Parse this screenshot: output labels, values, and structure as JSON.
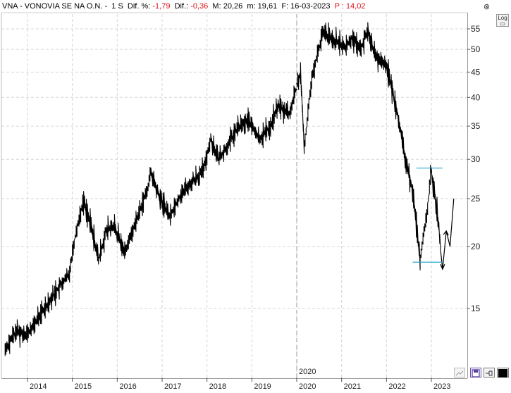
{
  "header": {
    "symbol": "VNA - VONOVIA SE NA O.N. -",
    "timeframe": "1 S",
    "dif_pct_label": "Dif. %:",
    "dif_pct_value": "-1,79",
    "dif_label": "Dif.:",
    "dif_value": "-0,36",
    "max_label": "M:",
    "max_value": "20,26",
    "min_label": "m:",
    "min_value": "19,61",
    "date_label": "F:",
    "date_value": "16-03-2023",
    "price_label": "P :",
    "price_value": "14,02"
  },
  "controls": {
    "log_label": "Log",
    "close_glyph": "⊗"
  },
  "colors": {
    "price_line": "#000000",
    "level_lines": "#2aa8c8",
    "grid": "#d6d6d6",
    "red_text": "#e0141e"
  },
  "chart_data": {
    "type": "line",
    "scale": "log",
    "ylim": [
      11.5,
      58
    ],
    "yticks": [
      15,
      20,
      25,
      30,
      35,
      40,
      45,
      50,
      55
    ],
    "x_range": [
      "2013-06",
      "2023-08"
    ],
    "xticks": [
      "2014",
      "2015",
      "2016",
      "2017",
      "2018",
      "2019",
      "2020",
      "2021",
      "2022",
      "2023"
    ],
    "cursor_label": "2020",
    "grid": true,
    "series": [
      {
        "values": [
          [
            "2013-07",
            12.4
          ],
          [
            "2013-10",
            13.5
          ],
          [
            "2014-01",
            13.3
          ],
          [
            "2014-04",
            14.4
          ],
          [
            "2014-07",
            15.6
          ],
          [
            "2014-10",
            16.8
          ],
          [
            "2014-12",
            17.5
          ],
          [
            "2015-02",
            21.5
          ],
          [
            "2015-04",
            24.8
          ],
          [
            "2015-06",
            22.0
          ],
          [
            "2015-08",
            18.8
          ],
          [
            "2015-10",
            21.5
          ],
          [
            "2015-12",
            22.0
          ],
          [
            "2016-03",
            19.5
          ],
          [
            "2016-06",
            22.5
          ],
          [
            "2016-09",
            26.0
          ],
          [
            "2016-10",
            28.2
          ],
          [
            "2016-12",
            25.5
          ],
          [
            "2017-03",
            23.0
          ],
          [
            "2017-06",
            25.5
          ],
          [
            "2017-09",
            27.0
          ],
          [
            "2017-12",
            28.5
          ],
          [
            "2018-02",
            33.0
          ],
          [
            "2018-04",
            30.0
          ],
          [
            "2018-06",
            31.5
          ],
          [
            "2018-09",
            34.5
          ],
          [
            "2018-12",
            36.0
          ],
          [
            "2019-03",
            33.0
          ],
          [
            "2019-06",
            35.0
          ],
          [
            "2019-08",
            38.5
          ],
          [
            "2019-11",
            37.0
          ],
          [
            "2020-01",
            42.0
          ],
          [
            "2020-02",
            45.0
          ],
          [
            "2020-03",
            31.5
          ],
          [
            "2020-05",
            44.0
          ],
          [
            "2020-08",
            54.0
          ],
          [
            "2020-11",
            52.0
          ],
          [
            "2021-02",
            50.5
          ],
          [
            "2021-04",
            53.0
          ],
          [
            "2021-06",
            50.0
          ],
          [
            "2021-08",
            54.5
          ],
          [
            "2021-10",
            48.5
          ],
          [
            "2022-01",
            46.5
          ],
          [
            "2022-04",
            37.0
          ],
          [
            "2022-06",
            30.0
          ],
          [
            "2022-08",
            26.0
          ],
          [
            "2022-10",
            18.8
          ],
          [
            "2022-12",
            24.0
          ],
          [
            "2023-01",
            28.5
          ],
          [
            "2023-03",
            22.0
          ],
          [
            "2023-03-16",
            19.6
          ]
        ]
      },
      {
        "name": "projection",
        "values": [
          [
            "2023-03-16",
            19.6
          ],
          [
            "2023-04",
            18.0
          ],
          [
            "2023-05",
            21.5
          ],
          [
            "2023-06",
            20.0
          ],
          [
            "2023-07",
            25.0
          ]
        ]
      }
    ],
    "levels": [
      {
        "value": 28.8,
        "x_start": "2022-09",
        "x_end": "2023-04"
      },
      {
        "value": 18.6,
        "x_start": "2022-08",
        "x_end": "2023-04"
      }
    ]
  }
}
